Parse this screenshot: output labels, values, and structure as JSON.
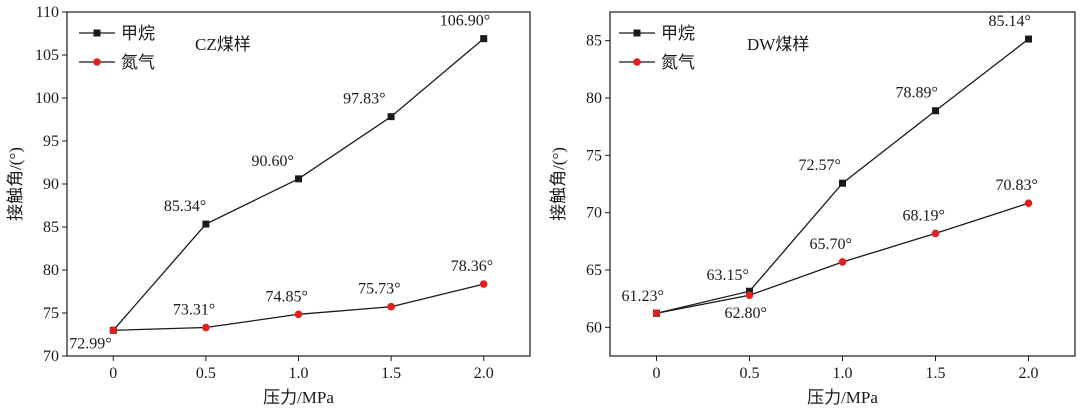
{
  "colors": {
    "methane": "#1a1a1a",
    "nitrogen": "#e02020",
    "axis": "#1a1a1a"
  },
  "chart_data": [
    {
      "type": "line",
      "title": "CZ煤样",
      "xlabel": "压力/MPa",
      "ylabel": "接触角/(°)",
      "xlim": [
        -0.25,
        2.25
      ],
      "ylim": [
        70,
        110
      ],
      "xticks": [
        "0",
        "0.5",
        "1.0",
        "1.5",
        "2.0"
      ],
      "yticks": [
        "70",
        "75",
        "80",
        "85",
        "90",
        "95",
        "100",
        "105",
        "110"
      ],
      "legend_position": "top-left",
      "x": [
        0,
        0.5,
        1.0,
        1.5,
        2.0
      ],
      "series": [
        {
          "name": "甲烷",
          "marker": "square",
          "values": [
            72.99,
            85.34,
            90.6,
            97.83,
            106.9
          ],
          "labels": [
            "72.99°",
            "85.34°",
            "90.60°",
            "97.83°",
            "106.90°"
          ]
        },
        {
          "name": "氮气",
          "marker": "circle",
          "values": [
            72.99,
            73.31,
            74.85,
            75.73,
            78.36
          ],
          "labels": [
            "",
            "73.31°",
            "74.85°",
            "75.73°",
            "78.36°"
          ]
        }
      ]
    },
    {
      "type": "line",
      "title": "DW煤样",
      "xlabel": "压力/MPa",
      "ylabel": "接触角/(°)",
      "xlim": [
        -0.25,
        2.25
      ],
      "ylim": [
        57.5,
        87.5
      ],
      "xticks": [
        "0",
        "0.5",
        "1.0",
        "1.5",
        "2.0"
      ],
      "yticks": [
        "60",
        "65",
        "70",
        "75",
        "80",
        "85"
      ],
      "legend_position": "top-left",
      "x": [
        0,
        0.5,
        1.0,
        1.5,
        2.0
      ],
      "series": [
        {
          "name": "甲烷",
          "marker": "square",
          "values": [
            61.23,
            63.15,
            72.57,
            78.89,
            85.14
          ],
          "labels": [
            "61.23°",
            "63.15°",
            "72.57°",
            "78.89°",
            "85.14°"
          ]
        },
        {
          "name": "氮气",
          "marker": "circle",
          "values": [
            61.23,
            62.8,
            65.7,
            68.19,
            70.83
          ],
          "labels": [
            "",
            "62.80°",
            "65.70°",
            "68.19°",
            "70.83°"
          ]
        }
      ]
    }
  ]
}
